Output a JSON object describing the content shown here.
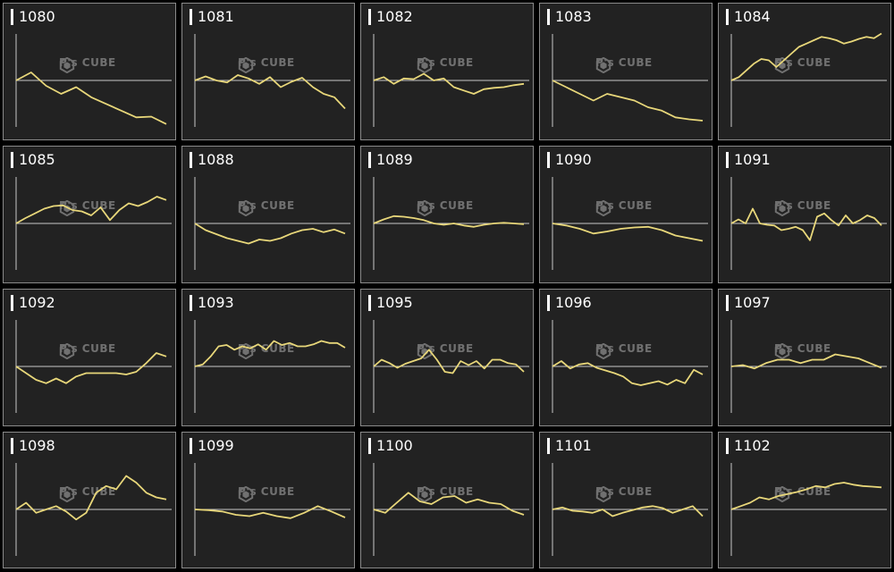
{
  "colors": {
    "line": "#e8d77a",
    "axis": "#c8c8c8",
    "panel": "#222222",
    "border": "#8a8a8a"
  },
  "watermark": {
    "name": "P's CUBE",
    "icon": "hexagon-cube-logo"
  },
  "chart_data": [
    {
      "type": "line",
      "label": "1080",
      "values": [
        0,
        1.2,
        -0.8,
        -2,
        -1,
        -2.5,
        -3.5,
        -4.5,
        -5.5,
        -5.4,
        -6.5
      ]
    },
    {
      "type": "line",
      "label": "1081",
      "values": [
        0,
        0.6,
        0,
        -0.3,
        0.8,
        0.3,
        -0.5,
        0.5,
        -1,
        -0.2,
        0.4,
        -1,
        -2,
        -2.5,
        -4.2
      ]
    },
    {
      "type": "line",
      "label": "1082",
      "values": [
        0,
        0.5,
        -0.5,
        0.3,
        0.2,
        1,
        0,
        0.3,
        -1,
        -1.5,
        -2,
        -1.3,
        -1.1,
        -1,
        -0.7,
        -0.5
      ]
    },
    {
      "type": "line",
      "label": "1083",
      "values": [
        0,
        -1,
        -2,
        -3,
        -2,
        -2.5,
        -3,
        -4,
        -4.5,
        -5.5,
        -5.8,
        -6
      ]
    },
    {
      "type": "line",
      "label": "1084",
      "values": [
        0,
        0.5,
        1.5,
        2.5,
        3.2,
        3,
        2,
        3,
        4,
        5,
        5.5,
        6,
        6.5,
        6.3,
        6,
        5.5,
        5.8,
        6.2,
        6.5,
        6.3,
        7
      ]
    },
    {
      "type": "line",
      "label": "1085",
      "values": [
        0,
        0.8,
        1.5,
        2.2,
        2.6,
        2.7,
        2,
        1.8,
        1.2,
        2.4,
        0.5,
        2,
        3,
        2.6,
        3.2,
        4,
        3.5
      ]
    },
    {
      "type": "line",
      "label": "1088",
      "values": [
        0,
        -1,
        -1.6,
        -2.2,
        -2.6,
        -3,
        -2.4,
        -2.6,
        -2.2,
        -1.5,
        -1,
        -0.8,
        -1.3,
        -0.9,
        -1.5
      ]
    },
    {
      "type": "line",
      "label": "1089",
      "values": [
        0,
        0.6,
        1.1,
        1,
        0.8,
        0.5,
        0,
        -0.2,
        0,
        -0.3,
        -0.5,
        -0.2,
        0,
        0.1,
        0,
        -0.1
      ]
    },
    {
      "type": "line",
      "label": "1090",
      "values": [
        0,
        -0.3,
        -0.8,
        -1.5,
        -1.2,
        -0.8,
        -0.6,
        -0.5,
        -1,
        -1.8,
        -2.2,
        -2.6
      ]
    },
    {
      "type": "line",
      "label": "1091",
      "values": [
        0,
        0.6,
        0,
        2.2,
        0,
        -0.2,
        -0.3,
        -1,
        -0.8,
        -0.5,
        -1,
        -2.5,
        1,
        1.5,
        0.5,
        -0.3,
        1.2,
        0,
        0.5,
        1.2,
        0.8,
        -0.3
      ]
    },
    {
      "type": "line",
      "label": "1092",
      "values": [
        0,
        -1,
        -2,
        -2.5,
        -1.8,
        -2.5,
        -1.5,
        -1,
        -1,
        -1,
        -1,
        -1.2,
        -0.8,
        0.5,
        2,
        1.5
      ]
    },
    {
      "type": "line",
      "label": "1093",
      "values": [
        0,
        0.3,
        1.5,
        3,
        3.2,
        2.5,
        3,
        2.7,
        3.3,
        2.5,
        3.8,
        3.2,
        3.5,
        3,
        3,
        3.3,
        3.8,
        3.5,
        3.5,
        2.8
      ]
    },
    {
      "type": "line",
      "label": "1095",
      "values": [
        0,
        1,
        0.5,
        -0.2,
        0.4,
        0.8,
        1.2,
        2.5,
        1,
        -0.8,
        -1,
        0.8,
        0.2,
        0.8,
        -0.3,
        1,
        1,
        0.5,
        0.3,
        -0.8
      ]
    },
    {
      "type": "line",
      "label": "1096",
      "values": [
        0,
        0.8,
        -0.3,
        0.3,
        0.5,
        -0.2,
        -0.6,
        -1,
        -1.5,
        -2.5,
        -2.8,
        -2.5,
        -2.2,
        -2.7,
        -2,
        -2.5,
        -0.5,
        -1.2
      ]
    },
    {
      "type": "line",
      "label": "1097",
      "values": [
        0,
        0.2,
        -0.3,
        0.5,
        1,
        1,
        0.5,
        1,
        1,
        1.8,
        1.5,
        1.2,
        0.5,
        -0.2
      ]
    },
    {
      "type": "line",
      "label": "1098",
      "values": [
        0,
        1,
        -0.5,
        0,
        0.5,
        -0.3,
        -1.5,
        -0.5,
        2.5,
        3.5,
        3,
        5,
        4,
        2.5,
        1.8,
        1.5
      ]
    },
    {
      "type": "line",
      "label": "1099",
      "values": [
        0,
        -0.1,
        -0.3,
        -0.8,
        -1,
        -0.5,
        -1,
        -1.3,
        -0.5,
        0.5,
        -0.3,
        -1.2
      ]
    },
    {
      "type": "line",
      "label": "1100",
      "values": [
        0,
        -0.5,
        1,
        2.5,
        1.2,
        0.8,
        1.8,
        2,
        1,
        1.5,
        1,
        0.8,
        -0.2,
        -0.8
      ]
    },
    {
      "type": "line",
      "label": "1101",
      "values": [
        0,
        0.3,
        -0.2,
        -0.3,
        -0.5,
        0,
        -1,
        -0.5,
        -0.1,
        0.3,
        0.5,
        0.2,
        -0.5,
        0,
        0.5,
        -1
      ]
    },
    {
      "type": "line",
      "label": "1102",
      "values": [
        0,
        0.5,
        1,
        1.8,
        1.5,
        2,
        2.3,
        2.6,
        3,
        3.5,
        3.3,
        3.8,
        4,
        3.7,
        3.5,
        3.4,
        3.3
      ]
    }
  ]
}
